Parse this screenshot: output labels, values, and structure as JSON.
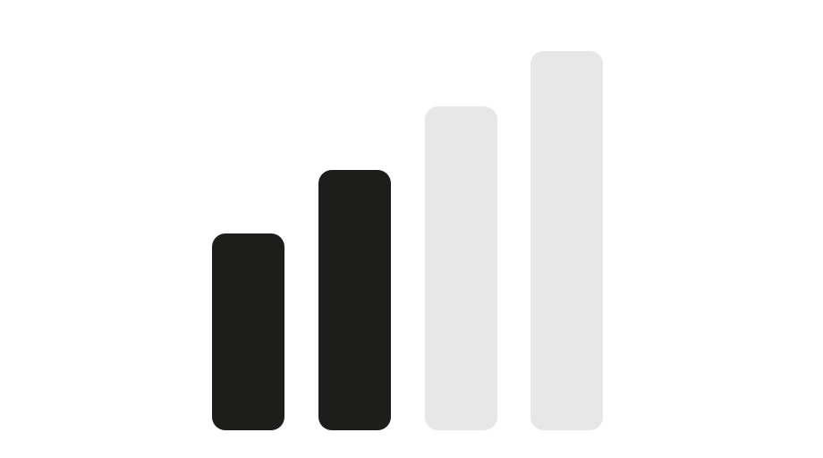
{
  "signal_indicator": {
    "icon": "signal-strength-icon",
    "level": 2,
    "max_level": 4,
    "active_color": "#1d1d1b",
    "inactive_color": "#e7e7e7",
    "bars": [
      {
        "active": true
      },
      {
        "active": true
      },
      {
        "active": false
      },
      {
        "active": false
      }
    ]
  }
}
